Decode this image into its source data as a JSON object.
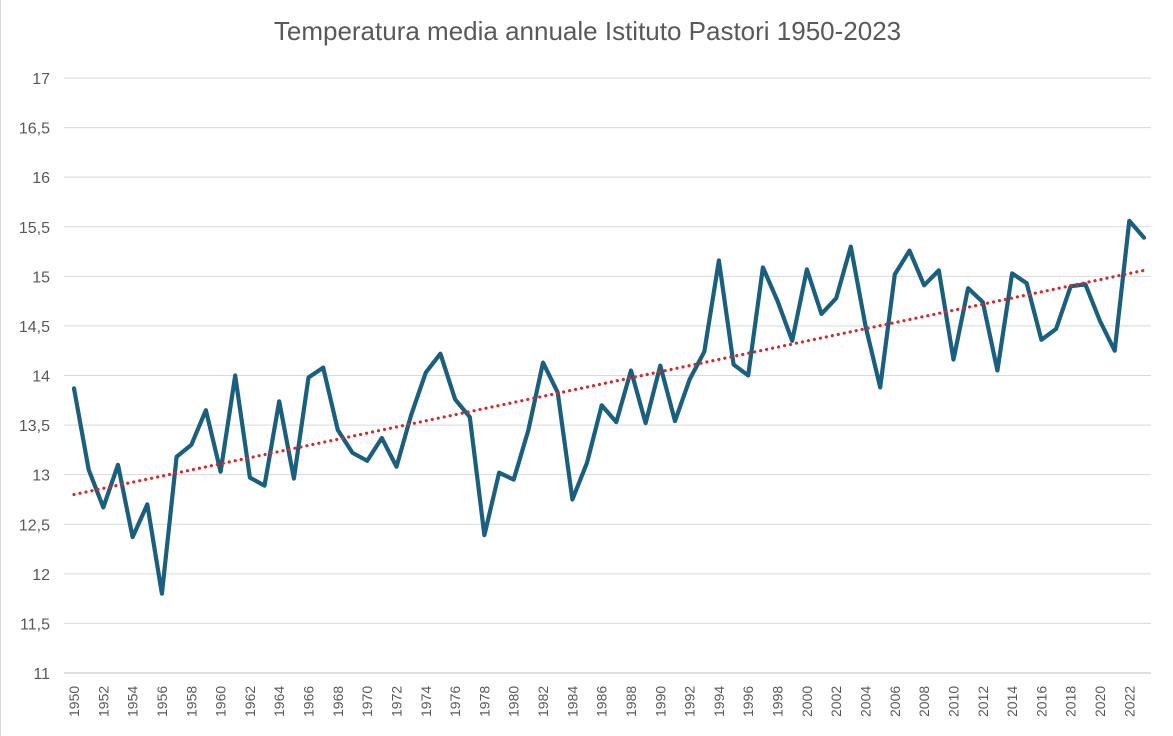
{
  "chart_data": {
    "type": "line",
    "title": "Temperatura media annuale Istituto Pastori 1950-2023",
    "xlabel": "",
    "ylabel": "",
    "ylim": [
      11,
      17
    ],
    "yticks": [
      "17",
      "16,5",
      "16",
      "15,5",
      "15",
      "14,5",
      "14",
      "13,5",
      "13",
      "12,5",
      "12",
      "11,5",
      "11"
    ],
    "ytick_values": [
      17,
      16.5,
      16,
      15.5,
      15,
      14.5,
      14,
      13.5,
      13,
      12.5,
      12,
      11.5,
      11
    ],
    "x": [
      1950,
      1951,
      1952,
      1953,
      1954,
      1955,
      1956,
      1957,
      1958,
      1959,
      1960,
      1961,
      1962,
      1963,
      1964,
      1965,
      1966,
      1967,
      1968,
      1969,
      1970,
      1971,
      1972,
      1973,
      1974,
      1975,
      1976,
      1977,
      1978,
      1979,
      1980,
      1981,
      1982,
      1983,
      1984,
      1985,
      1986,
      1987,
      1988,
      1989,
      1990,
      1991,
      1992,
      1993,
      1994,
      1995,
      1996,
      1997,
      1998,
      1999,
      2000,
      2001,
      2002,
      2003,
      2004,
      2005,
      2006,
      2007,
      2008,
      2009,
      2010,
      2011,
      2012,
      2013,
      2014,
      2015,
      2016,
      2017,
      2018,
      2019,
      2020,
      2021,
      2022,
      2023
    ],
    "xtick_labels": [
      "1950",
      "1952",
      "1954",
      "1956",
      "1958",
      "1960",
      "1962",
      "1964",
      "1966",
      "1968",
      "1970",
      "1972",
      "1974",
      "1976",
      "1978",
      "1980",
      "1982",
      "1984",
      "1986",
      "1988",
      "1990",
      "1992",
      "1994",
      "1996",
      "1998",
      "2000",
      "2002",
      "2004",
      "2006",
      "2008",
      "2010",
      "2012",
      "2014",
      "2016",
      "2018",
      "2020",
      "2022"
    ],
    "series": [
      {
        "values": [
          13.87,
          13.05,
          12.67,
          13.1,
          12.37,
          12.7,
          11.8,
          13.18,
          13.3,
          13.65,
          13.03,
          14.0,
          12.97,
          12.89,
          13.74,
          12.96,
          13.98,
          14.08,
          13.45,
          13.22,
          13.14,
          13.37,
          13.08,
          13.6,
          14.03,
          14.22,
          13.76,
          13.58,
          12.39,
          13.02,
          12.95,
          13.45,
          14.13,
          13.83,
          12.75,
          13.12,
          13.7,
          13.53,
          14.05,
          13.52,
          14.1,
          13.54,
          13.96,
          14.24,
          15.16,
          14.11,
          14.0,
          15.09,
          14.75,
          14.35,
          15.07,
          14.62,
          14.78,
          15.3,
          14.5,
          13.88,
          15.02,
          15.26,
          14.91,
          15.06,
          14.16,
          14.88,
          14.74,
          14.05,
          15.03,
          14.93,
          14.36,
          14.47,
          14.9,
          14.92,
          14.55,
          14.25,
          15.56,
          15.39
        ],
        "color": "#1b5f7f"
      },
      {
        "trendline": true,
        "x": [
          1950,
          2023
        ],
        "values": [
          12.8,
          15.06
        ],
        "color": "#d22b2b"
      }
    ],
    "grid": true,
    "legend": "none",
    "colors": {
      "line": "#1b5f7f",
      "trend": "#d22b2b",
      "grid": "#d9d9d9",
      "axis": "#bfbfbf",
      "text": "#595959"
    }
  }
}
